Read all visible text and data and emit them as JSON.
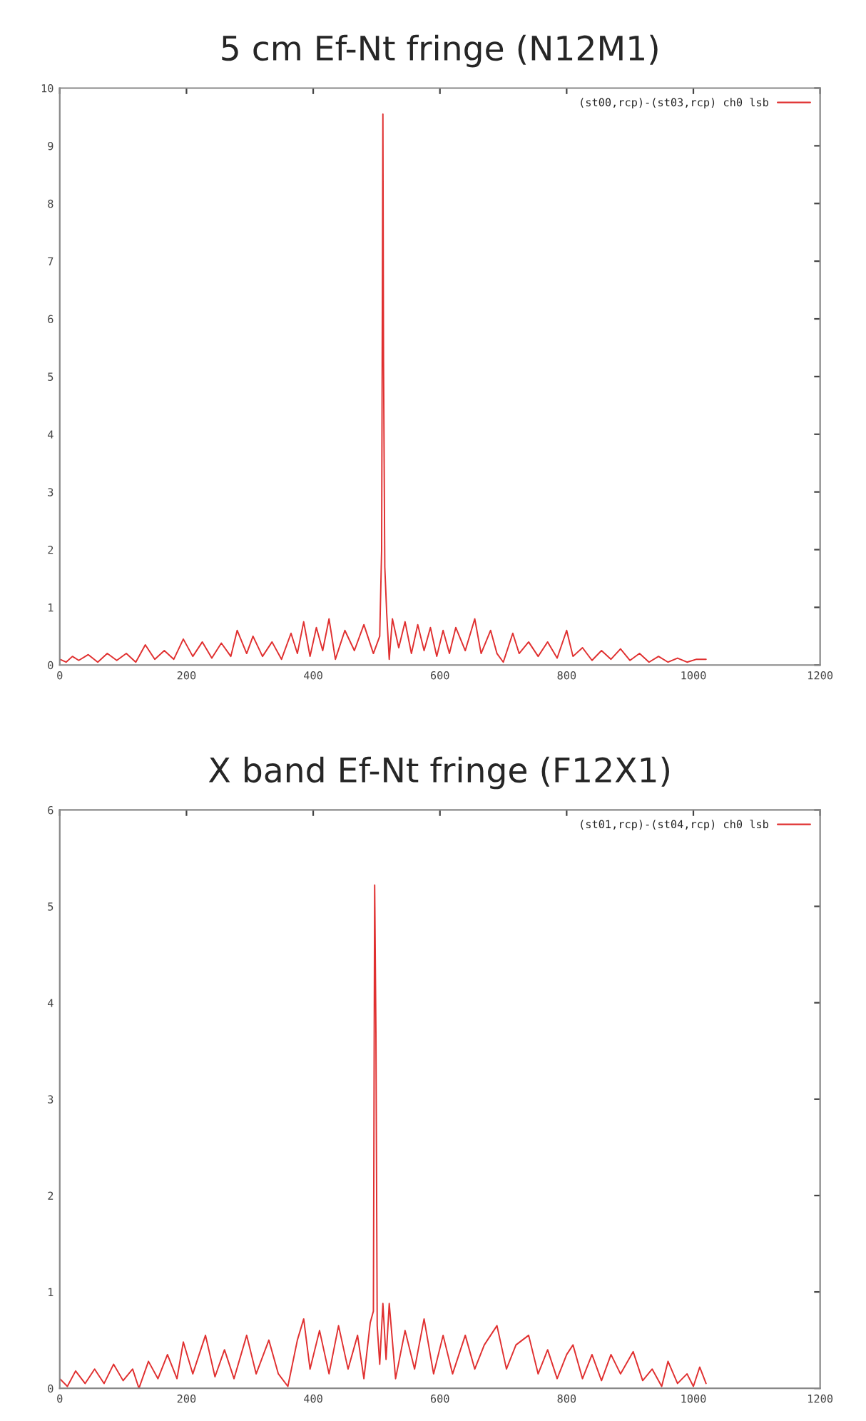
{
  "chart_data": [
    {
      "type": "line",
      "title": "5 cm Ef-Nt fringe (N12M1)",
      "xlim": [
        0,
        1200
      ],
      "ylim": [
        0,
        10
      ],
      "xticks": [
        0,
        200,
        400,
        600,
        800,
        1000,
        1200
      ],
      "yticks": [
        0,
        1,
        2,
        3,
        4,
        5,
        6,
        7,
        8,
        9,
        10
      ],
      "grid": false,
      "legend": "top right",
      "marker": "none",
      "line_style": "solid",
      "series": [
        {
          "name": "(st00,rcp)-(st03,rcp) ch0 lsb",
          "color": "#e03030",
          "x": [
            0,
            10,
            20,
            30,
            45,
            60,
            75,
            90,
            105,
            120,
            135,
            150,
            165,
            180,
            195,
            210,
            225,
            240,
            255,
            270,
            280,
            295,
            305,
            320,
            335,
            350,
            365,
            375,
            385,
            395,
            405,
            415,
            425,
            435,
            450,
            465,
            480,
            495,
            505,
            508,
            510,
            511,
            513,
            516,
            520,
            525,
            535,
            545,
            555,
            565,
            575,
            585,
            595,
            605,
            615,
            625,
            640,
            655,
            665,
            680,
            690,
            700,
            715,
            725,
            740,
            755,
            770,
            785,
            800,
            810,
            825,
            840,
            855,
            870,
            885,
            900,
            915,
            930,
            945,
            960,
            975,
            990,
            1005,
            1020
          ],
          "values": [
            0.1,
            0.05,
            0.15,
            0.08,
            0.18,
            0.05,
            0.2,
            0.08,
            0.2,
            0.05,
            0.35,
            0.1,
            0.25,
            0.1,
            0.45,
            0.15,
            0.4,
            0.12,
            0.38,
            0.15,
            0.6,
            0.2,
            0.5,
            0.15,
            0.4,
            0.1,
            0.55,
            0.2,
            0.75,
            0.15,
            0.65,
            0.25,
            0.8,
            0.1,
            0.6,
            0.25,
            0.7,
            0.2,
            0.5,
            2.0,
            9.55,
            5.25,
            1.7,
            0.9,
            0.1,
            0.8,
            0.3,
            0.75,
            0.2,
            0.7,
            0.25,
            0.65,
            0.15,
            0.6,
            0.2,
            0.65,
            0.25,
            0.8,
            0.2,
            0.6,
            0.2,
            0.05,
            0.55,
            0.2,
            0.4,
            0.15,
            0.4,
            0.12,
            0.6,
            0.15,
            0.3,
            0.08,
            0.25,
            0.1,
            0.28,
            0.08,
            0.2,
            0.05,
            0.15,
            0.05,
            0.12,
            0.05,
            0.1,
            0.1
          ]
        }
      ]
    },
    {
      "type": "line",
      "title": "X band Ef-Nt fringe (F12X1)",
      "xlim": [
        0,
        1200
      ],
      "ylim": [
        0,
        6
      ],
      "xticks": [
        0,
        200,
        400,
        600,
        800,
        1000,
        1200
      ],
      "yticks": [
        0,
        1,
        2,
        3,
        4,
        5,
        6
      ],
      "grid": false,
      "legend": "top right",
      "marker": "none",
      "line_style": "solid",
      "series": [
        {
          "name": "(st01,rcp)-(st04,rcp) ch0 lsb",
          "color": "#e03030",
          "x": [
            0,
            12,
            25,
            40,
            55,
            70,
            85,
            100,
            115,
            125,
            140,
            155,
            170,
            185,
            195,
            210,
            230,
            245,
            260,
            275,
            295,
            310,
            330,
            345,
            360,
            375,
            385,
            395,
            410,
            425,
            440,
            455,
            470,
            480,
            490,
            495,
            497,
            499,
            501,
            505,
            510,
            515,
            520,
            530,
            545,
            560,
            575,
            590,
            605,
            620,
            640,
            655,
            670,
            690,
            705,
            720,
            740,
            755,
            770,
            785,
            800,
            810,
            825,
            840,
            855,
            870,
            885,
            905,
            920,
            935,
            950,
            960,
            975,
            990,
            1000,
            1010,
            1020
          ],
          "values": [
            0.1,
            0.02,
            0.18,
            0.05,
            0.2,
            0.05,
            0.25,
            0.08,
            0.2,
            0.0,
            0.28,
            0.1,
            0.35,
            0.1,
            0.48,
            0.15,
            0.55,
            0.12,
            0.4,
            0.1,
            0.55,
            0.15,
            0.5,
            0.15,
            0.02,
            0.5,
            0.72,
            0.2,
            0.6,
            0.15,
            0.65,
            0.2,
            0.55,
            0.1,
            0.68,
            0.8,
            5.22,
            3.7,
            0.65,
            0.25,
            0.88,
            0.3,
            0.88,
            0.1,
            0.6,
            0.2,
            0.72,
            0.15,
            0.55,
            0.15,
            0.55,
            0.2,
            0.45,
            0.65,
            0.2,
            0.45,
            0.55,
            0.15,
            0.4,
            0.1,
            0.35,
            0.45,
            0.1,
            0.35,
            0.08,
            0.35,
            0.15,
            0.38,
            0.08,
            0.2,
            0.02,
            0.28,
            0.05,
            0.15,
            0.02,
            0.22,
            0.05
          ]
        }
      ]
    }
  ]
}
